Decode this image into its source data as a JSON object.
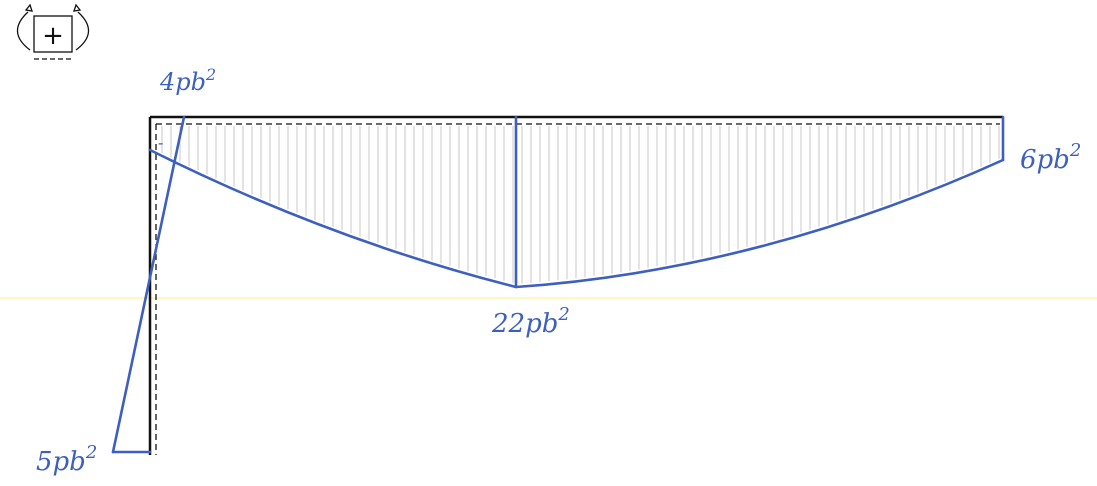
{
  "labels": {
    "top_left": "4pb",
    "top_left_exp": "2",
    "right_end": "6pb",
    "right_end_exp": "2",
    "midspan": "22pb",
    "midspan_exp": "2",
    "column_base": "5pb",
    "column_base_exp": "2",
    "sign_plus": "+",
    "sign_minus": "-"
  },
  "colors": {
    "structure": "#111111",
    "diagram": "#3d5fbf",
    "hatch": "#c8c8c8",
    "guide": "#fff4b0"
  }
}
